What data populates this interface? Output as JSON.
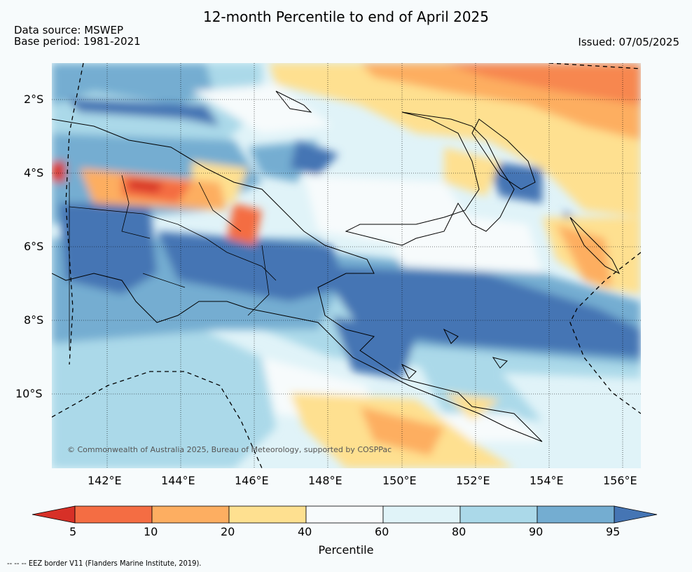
{
  "title": "12-month Percentile to end of April 2025",
  "source_line1": "Data source: MSWEP",
  "source_line2": "Base period: 1981-2021",
  "issued": "Issued: 07/05/2025",
  "map": {
    "lon_labels": [
      "142°E",
      "144°E",
      "146°E",
      "148°E",
      "150°E",
      "152°E",
      "154°E",
      "156°E"
    ],
    "lat_labels": [
      "2°S",
      "4°S",
      "6°S",
      "8°S",
      "10°S"
    ],
    "copyright": "© Commonwealth of Australia 2025, Bureau of Meteorology, supported by COSPPac"
  },
  "colorbar": {
    "label": "Percentile",
    "ticks": [
      "5",
      "10",
      "20",
      "40",
      "60",
      "80",
      "90",
      "95"
    ],
    "colors": {
      "below5": "#d73027",
      "c5_10": "#f46d43",
      "c10_20": "#fdae61",
      "c20_40": "#fee090",
      "c40_60": "#f7fbfc",
      "c60_80": "#e0f3f8",
      "c80_90": "#abd9e9",
      "c90_95": "#74add1",
      "above95": "#4575b4"
    }
  },
  "footnote": "-- -- -- EEZ border V11 (Flanders Marine Institute, 2019)."
}
